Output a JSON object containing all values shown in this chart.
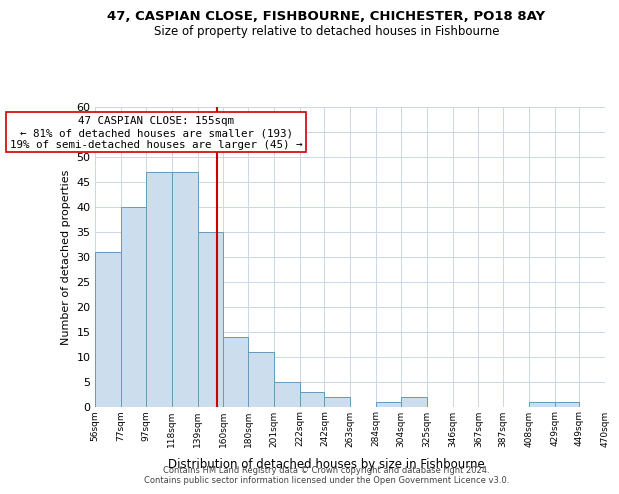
{
  "title1": "47, CASPIAN CLOSE, FISHBOURNE, CHICHESTER, PO18 8AY",
  "title2": "Size of property relative to detached houses in Fishbourne",
  "xlabel": "Distribution of detached houses by size in Fishbourne",
  "ylabel": "Number of detached properties",
  "bar_edges": [
    56,
    77,
    97,
    118,
    139,
    160,
    180,
    201,
    222,
    242,
    263,
    284,
    304,
    325,
    346,
    367,
    387,
    408,
    429,
    449,
    470
  ],
  "bar_heights": [
    31,
    40,
    47,
    47,
    35,
    14,
    11,
    5,
    3,
    2,
    0,
    1,
    2,
    0,
    0,
    0,
    0,
    1,
    1,
    0
  ],
  "bar_color": "#ccdded",
  "bar_edge_color": "#6699bb",
  "reference_line_x": 155,
  "reference_line_color": "#cc0000",
  "ylim": [
    0,
    60
  ],
  "yticks": [
    0,
    5,
    10,
    15,
    20,
    25,
    30,
    35,
    40,
    45,
    50,
    55,
    60
  ],
  "annotation_title": "47 CASPIAN CLOSE: 155sqm",
  "annotation_line1": "← 81% of detached houses are smaller (193)",
  "annotation_line2": "19% of semi-detached houses are larger (45) →",
  "annotation_box_color": "#ffffff",
  "annotation_box_edge": "#cc0000",
  "tick_labels": [
    "56sqm",
    "77sqm",
    "97sqm",
    "118sqm",
    "139sqm",
    "160sqm",
    "180sqm",
    "201sqm",
    "222sqm",
    "242sqm",
    "263sqm",
    "284sqm",
    "304sqm",
    "325sqm",
    "346sqm",
    "367sqm",
    "387sqm",
    "408sqm",
    "429sqm",
    "449sqm",
    "470sqm"
  ],
  "footer1": "Contains HM Land Registry data © Crown copyright and database right 2024.",
  "footer2": "Contains public sector information licensed under the Open Government Licence v3.0.",
  "bg_color": "#ffffff",
  "grid_color": "#c8d8e8"
}
